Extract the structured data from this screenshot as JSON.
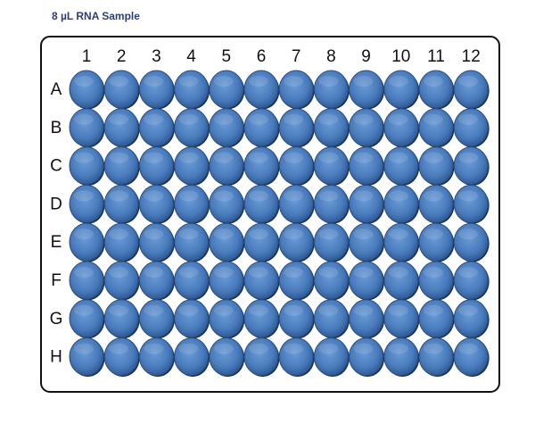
{
  "title": "8 µL RNA Sample",
  "columns": [
    "1",
    "2",
    "3",
    "4",
    "5",
    "6",
    "7",
    "8",
    "9",
    "10",
    "11",
    "12"
  ],
  "rows": [
    "A",
    "B",
    "C",
    "D",
    "E",
    "F",
    "G",
    "H"
  ]
}
